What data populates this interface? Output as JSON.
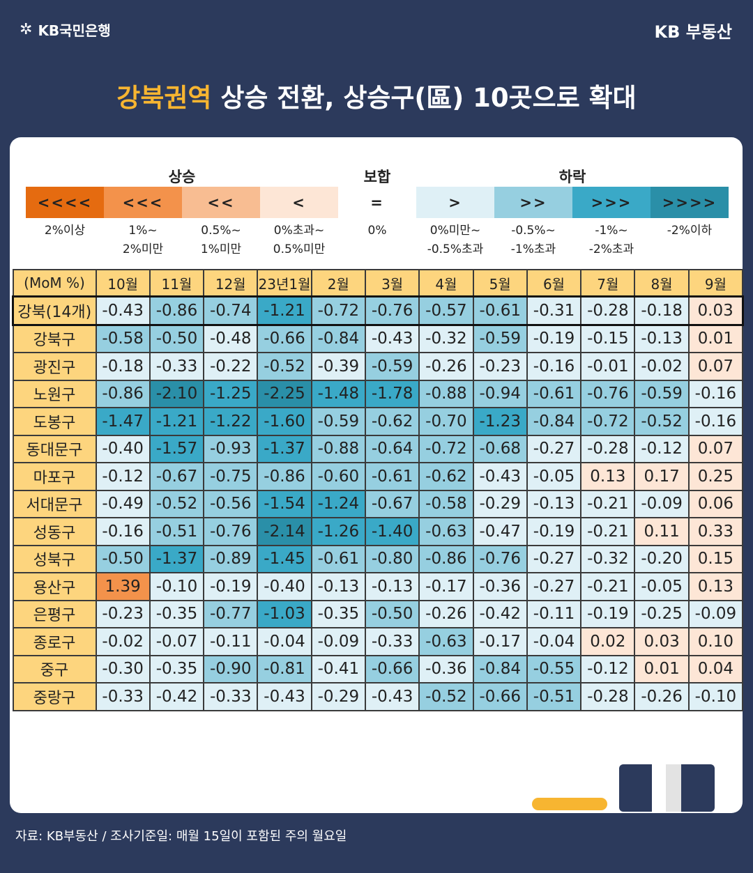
{
  "header": {
    "bank_logo": "KB국민은행",
    "brand": "KB 부동산",
    "title_highlight": "강북권역",
    "title_rest": " 상승 전환, 상승구(區) 10곳으로 확대"
  },
  "legend": {
    "groups": {
      "up": "상승",
      "flat": "보합",
      "down": "하락"
    },
    "items": [
      {
        "symbol": "<<<<",
        "label": "2%이상",
        "color": "#e56b10"
      },
      {
        "symbol": "<<<",
        "label": "1%~\n2%미만",
        "color": "#f3924b"
      },
      {
        "symbol": "<<",
        "label": "0.5%~\n1%미만",
        "color": "#f8bd92"
      },
      {
        "symbol": "<",
        "label": "0%초과~\n0.5%미만",
        "color": "#fde6d6"
      },
      {
        "symbol": "=",
        "label": "0%",
        "color": "#ffffff"
      },
      {
        "symbol": ">",
        "label": "0%미만~\n-0.5%초과",
        "color": "#dff0f6"
      },
      {
        "symbol": ">>",
        "label": "-0.5%~\n-1%초과",
        "color": "#96cfe0"
      },
      {
        "symbol": ">>>",
        "label": "-1%~\n-2%초과",
        "color": "#3aa9c7"
      },
      {
        "symbol": ">>>>",
        "label": "-2%이하",
        "color": "#2a8fa8"
      }
    ]
  },
  "chart_data": {
    "type": "heatmap",
    "title": "강북권역 상승 전환, 상승구(區) 10곳으로 확대",
    "unit_label": "(MoM %)",
    "columns": [
      "10월",
      "11월",
      "12월",
      "23년1월",
      "2월",
      "3월",
      "4월",
      "5월",
      "6월",
      "7월",
      "8월",
      "9월"
    ],
    "rows": [
      {
        "name": "강북(14개)",
        "summary": true,
        "values": [
          -0.43,
          -0.86,
          -0.74,
          -1.21,
          -0.72,
          -0.76,
          -0.57,
          -0.61,
          -0.31,
          -0.28,
          -0.18,
          0.03
        ]
      },
      {
        "name": "강북구",
        "values": [
          -0.58,
          -0.5,
          -0.48,
          -0.66,
          -0.84,
          -0.43,
          -0.32,
          -0.59,
          -0.19,
          -0.15,
          -0.13,
          0.01
        ]
      },
      {
        "name": "광진구",
        "values": [
          -0.18,
          -0.33,
          -0.22,
          -0.52,
          -0.39,
          -0.59,
          -0.26,
          -0.23,
          -0.16,
          -0.01,
          -0.02,
          0.07
        ]
      },
      {
        "name": "노원구",
        "values": [
          -0.86,
          -2.1,
          -1.25,
          -2.25,
          -1.48,
          -1.78,
          -0.88,
          -0.94,
          -0.61,
          -0.76,
          -0.59,
          -0.16
        ]
      },
      {
        "name": "도봉구",
        "values": [
          -1.47,
          -1.21,
          -1.22,
          -1.6,
          -0.59,
          -0.62,
          -0.7,
          -1.23,
          -0.84,
          -0.72,
          -0.52,
          -0.16
        ]
      },
      {
        "name": "동대문구",
        "values": [
          -0.4,
          -1.57,
          -0.93,
          -1.37,
          -0.88,
          -0.64,
          -0.72,
          -0.68,
          -0.27,
          -0.28,
          -0.12,
          0.07
        ]
      },
      {
        "name": "마포구",
        "values": [
          -0.12,
          -0.67,
          -0.75,
          -0.86,
          -0.6,
          -0.61,
          -0.62,
          -0.43,
          -0.05,
          0.13,
          0.17,
          0.25
        ]
      },
      {
        "name": "서대문구",
        "values": [
          -0.49,
          -0.52,
          -0.56,
          -1.54,
          -1.24,
          -0.67,
          -0.58,
          -0.29,
          -0.13,
          -0.21,
          -0.09,
          0.06
        ]
      },
      {
        "name": "성동구",
        "values": [
          -0.16,
          -0.51,
          -0.76,
          -2.14,
          -1.26,
          -1.4,
          -0.63,
          -0.47,
          -0.19,
          -0.21,
          0.11,
          0.33
        ]
      },
      {
        "name": "성북구",
        "values": [
          -0.5,
          -1.37,
          -0.89,
          -1.45,
          -0.61,
          -0.8,
          -0.86,
          -0.76,
          -0.27,
          -0.32,
          -0.2,
          0.15
        ]
      },
      {
        "name": "용산구",
        "values": [
          1.39,
          -0.1,
          -0.19,
          -0.4,
          -0.13,
          -0.13,
          -0.17,
          -0.36,
          -0.27,
          -0.21,
          -0.05,
          0.13
        ]
      },
      {
        "name": "은평구",
        "values": [
          -0.23,
          -0.35,
          -0.77,
          -1.03,
          -0.35,
          -0.5,
          -0.26,
          -0.42,
          -0.11,
          -0.19,
          -0.25,
          -0.09
        ]
      },
      {
        "name": "종로구",
        "values": [
          -0.02,
          -0.07,
          -0.11,
          -0.04,
          -0.09,
          -0.33,
          -0.63,
          -0.17,
          -0.04,
          0.02,
          0.03,
          0.1
        ]
      },
      {
        "name": "중구",
        "values": [
          -0.3,
          -0.35,
          -0.9,
          -0.81,
          -0.41,
          -0.66,
          -0.36,
          -0.84,
          -0.55,
          -0.12,
          0.01,
          0.04
        ]
      },
      {
        "name": "중랑구",
        "values": [
          -0.33,
          -0.42,
          -0.33,
          -0.43,
          -0.29,
          -0.43,
          -0.52,
          -0.66,
          -0.51,
          -0.28,
          -0.26,
          -0.1
        ]
      }
    ]
  },
  "footer": {
    "source": "자료: KB부동산 / 조사기준일: 매월 15일이 포함된 주의 월요일"
  }
}
